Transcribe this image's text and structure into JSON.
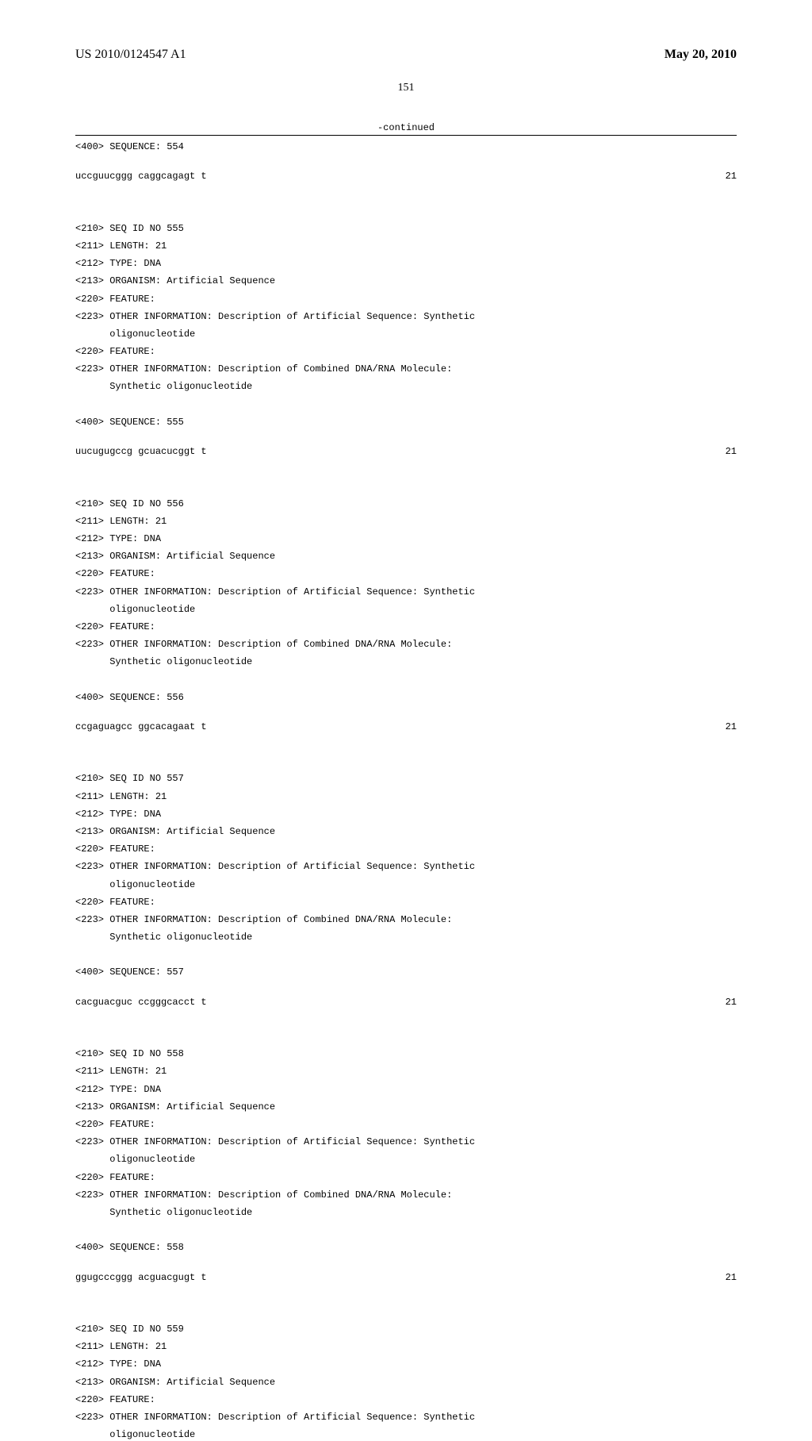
{
  "header": {
    "pub_number": "US 2010/0124547 A1",
    "pub_date": "May 20, 2010"
  },
  "page_number": "151",
  "continued_label": "-continued",
  "entries": [
    {
      "pre_seq_header": "<400> SEQUENCE: 554",
      "sequence": "uccguucggg caggcagagt t",
      "seq_len": "21"
    },
    {
      "header_lines": [
        "<210> SEQ ID NO 555",
        "<211> LENGTH: 21",
        "<212> TYPE: DNA",
        "<213> ORGANISM: Artificial Sequence",
        "<220> FEATURE:",
        "<223> OTHER INFORMATION: Description of Artificial Sequence: Synthetic",
        "      oligonucleotide",
        "<220> FEATURE:",
        "<223> OTHER INFORMATION: Description of Combined DNA/RNA Molecule:",
        "      Synthetic oligonucleotide"
      ],
      "seq_header": "<400> SEQUENCE: 555",
      "sequence": "uucugugccg gcuacucggt t",
      "seq_len": "21"
    },
    {
      "header_lines": [
        "<210> SEQ ID NO 556",
        "<211> LENGTH: 21",
        "<212> TYPE: DNA",
        "<213> ORGANISM: Artificial Sequence",
        "<220> FEATURE:",
        "<223> OTHER INFORMATION: Description of Artificial Sequence: Synthetic",
        "      oligonucleotide",
        "<220> FEATURE:",
        "<223> OTHER INFORMATION: Description of Combined DNA/RNA Molecule:",
        "      Synthetic oligonucleotide"
      ],
      "seq_header": "<400> SEQUENCE: 556",
      "sequence": "ccgaguagcc ggcacagaat t",
      "seq_len": "21"
    },
    {
      "header_lines": [
        "<210> SEQ ID NO 557",
        "<211> LENGTH: 21",
        "<212> TYPE: DNA",
        "<213> ORGANISM: Artificial Sequence",
        "<220> FEATURE:",
        "<223> OTHER INFORMATION: Description of Artificial Sequence: Synthetic",
        "      oligonucleotide",
        "<220> FEATURE:",
        "<223> OTHER INFORMATION: Description of Combined DNA/RNA Molecule:",
        "      Synthetic oligonucleotide"
      ],
      "seq_header": "<400> SEQUENCE: 557",
      "sequence": "cacguacguc ccgggcacct t",
      "seq_len": "21"
    },
    {
      "header_lines": [
        "<210> SEQ ID NO 558",
        "<211> LENGTH: 21",
        "<212> TYPE: DNA",
        "<213> ORGANISM: Artificial Sequence",
        "<220> FEATURE:",
        "<223> OTHER INFORMATION: Description of Artificial Sequence: Synthetic",
        "      oligonucleotide",
        "<220> FEATURE:",
        "<223> OTHER INFORMATION: Description of Combined DNA/RNA Molecule:",
        "      Synthetic oligonucleotide"
      ],
      "seq_header": "<400> SEQUENCE: 558",
      "sequence": "ggugcccggg acguacgugt t",
      "seq_len": "21"
    },
    {
      "header_lines": [
        "<210> SEQ ID NO 559",
        "<211> LENGTH: 21",
        "<212> TYPE: DNA",
        "<213> ORGANISM: Artificial Sequence",
        "<220> FEATURE:",
        "<223> OTHER INFORMATION: Description of Artificial Sequence: Synthetic",
        "      oligonucleotide"
      ]
    }
  ]
}
